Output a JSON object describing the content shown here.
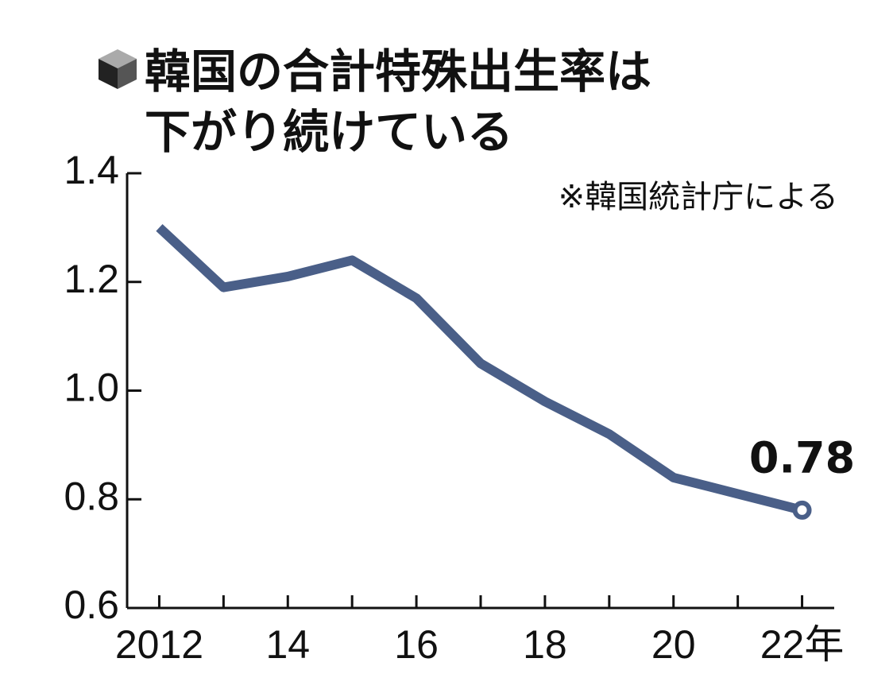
{
  "chart_data": {
    "type": "line",
    "title": [
      "韓国の合計特殊出生率は",
      "下がり続けている"
    ],
    "source": "※韓国統計庁による",
    "x": [
      2012,
      2013,
      2014,
      2015,
      2016,
      2017,
      2018,
      2019,
      2020,
      2021,
      2022
    ],
    "values": [
      1.3,
      1.19,
      1.21,
      1.24,
      1.17,
      1.05,
      0.98,
      0.92,
      0.84,
      0.81,
      0.78
    ],
    "color": "#4a5f88",
    "xlim": [
      2011.5,
      2022.5
    ],
    "xticks": [
      {
        "value": 2012,
        "label": "2012"
      },
      {
        "value": 2014,
        "label": "14"
      },
      {
        "value": 2016,
        "label": "16"
      },
      {
        "value": 2018,
        "label": "18"
      },
      {
        "value": 2020,
        "label": "20"
      },
      {
        "value": 2022,
        "label": "22年"
      }
    ],
    "ylim": [
      0.6,
      1.4
    ],
    "yticks": [
      0.6,
      0.8,
      {
        "value": 1.0,
        "label": "1.0"
      },
      1.2,
      1.4
    ]
  }
}
